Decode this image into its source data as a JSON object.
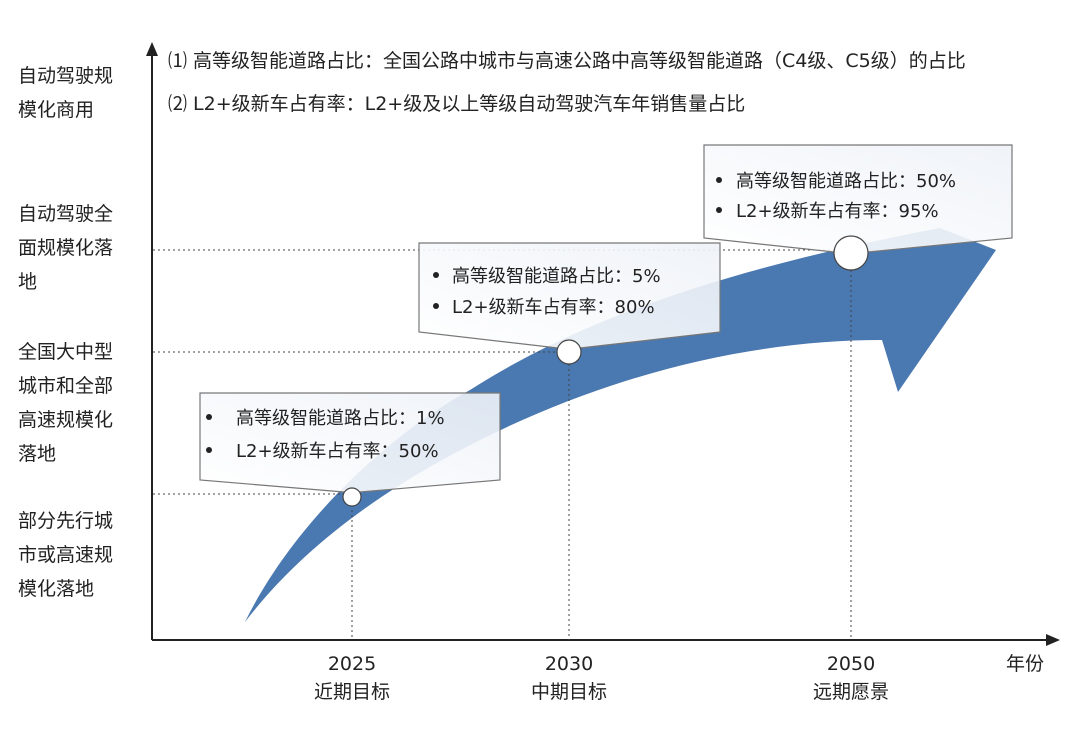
{
  "notes": [
    "⑴ 高等级智能道路占比：全国公路中城市与高速公路中高等级智能道路（C4级、C5级）的占比",
    "⑵ L2+级新车占有率：L2+级及以上等级自动驾驶汽车年销售量占比"
  ],
  "y_levels": [
    {
      "lines": [
        "自动驾驶规",
        "模化商用"
      ]
    },
    {
      "lines": [
        "自动驾驶全",
        "面规模化落",
        "地"
      ]
    },
    {
      "lines": [
        "全国大中型",
        "城市和全部",
        "高速规模化",
        "落地"
      ]
    },
    {
      "lines": [
        "部分先行城",
        "市或高速规",
        "模化落地"
      ]
    }
  ],
  "x_axis_label": "年份",
  "milestones": [
    {
      "year": "2025",
      "name": "近期目标",
      "items": [
        "高等级智能道路占比：1%",
        "L2+级新车占有率：50%"
      ]
    },
    {
      "year": "2030",
      "name": "中期目标",
      "items": [
        "高等级智能道路占比：5%",
        "L2+级新车占有率：80%"
      ]
    },
    {
      "year": "2050",
      "name": "远期愿景",
      "items": [
        "高等级智能道路占比：50%",
        "L2+级新车占有率：95%"
      ]
    }
  ],
  "colors": {
    "arrow": "#4a78b0",
    "axis": "#222222",
    "box_border": "#777777"
  }
}
